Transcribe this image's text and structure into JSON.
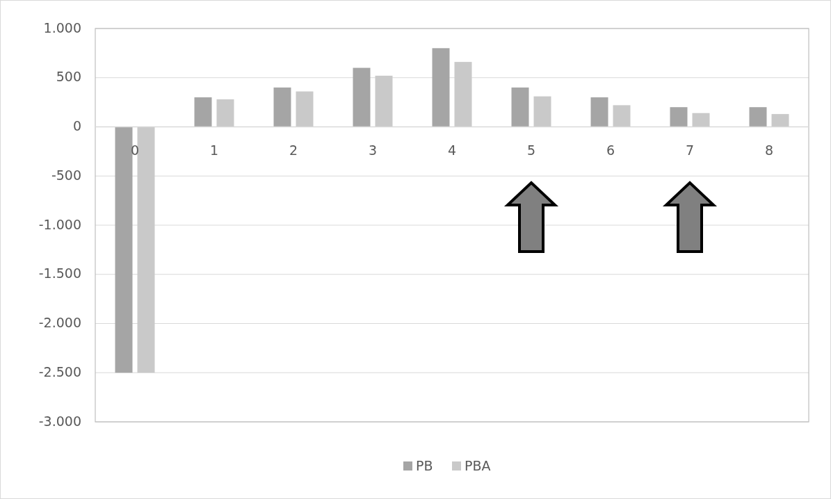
{
  "chart_data": {
    "type": "bar",
    "categories": [
      "0",
      "1",
      "2",
      "3",
      "4",
      "5",
      "6",
      "7",
      "8"
    ],
    "series": [
      {
        "name": "PB",
        "color": "#a5a5a5",
        "values": [
          -2500,
          300,
          400,
          600,
          800,
          400,
          300,
          200,
          200
        ]
      },
      {
        "name": "PBA",
        "color": "#c9c9c9",
        "values": [
          -2500,
          280,
          360,
          520,
          660,
          310,
          220,
          140,
          130
        ]
      }
    ],
    "ylim": [
      -3000,
      1000
    ],
    "yticks": [
      {
        "value": -3000,
        "label": "-3.000"
      },
      {
        "value": -2500,
        "label": "-2.500"
      },
      {
        "value": -2000,
        "label": "-2.000"
      },
      {
        "value": -1500,
        "label": "-1.500"
      },
      {
        "value": -1000,
        "label": "-1.000"
      },
      -500,
      0,
      500,
      {
        "value": 1000,
        "label": "1.000"
      }
    ],
    "grid": "y",
    "legend": "bottom"
  }
}
